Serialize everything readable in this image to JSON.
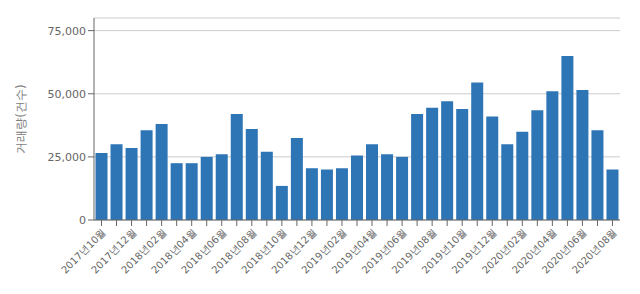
{
  "chart_data": {
    "type": "bar",
    "ylabel": "거래량(건수)",
    "categories": [
      "2017년10월",
      null,
      "2017년12월",
      null,
      "2018년02월",
      null,
      "2018년04월",
      null,
      "2018년06월",
      null,
      "2018년08월",
      null,
      "2018년10월",
      null,
      "2018년12월",
      null,
      "2019년02월",
      null,
      "2019년04월",
      null,
      "2019년06월",
      null,
      "2019년08월",
      null,
      "2019년10월",
      null,
      "2019년12월",
      null,
      "2020년02월",
      null,
      "2020년04월",
      null,
      "2020년06월",
      null,
      "2020년08월"
    ],
    "values": [
      26500,
      30000,
      28500,
      35500,
      38000,
      22500,
      22500,
      25000,
      26000,
      42000,
      36000,
      27000,
      13500,
      32500,
      20500,
      20000,
      20500,
      25500,
      30000,
      26000,
      25000,
      42000,
      44500,
      47000,
      44000,
      54500,
      41000,
      30000,
      35000,
      43500,
      51000,
      65000,
      51500,
      35500,
      20000
    ],
    "color": "#2e75b6",
    "ylim": [
      0,
      80000
    ],
    "yticks": [
      0,
      {
        "value": 25000,
        "label": "25,000"
      },
      {
        "value": 50000,
        "label": "50,000"
      },
      {
        "value": 75000,
        "label": "75,000"
      }
    ],
    "grid": true
  }
}
